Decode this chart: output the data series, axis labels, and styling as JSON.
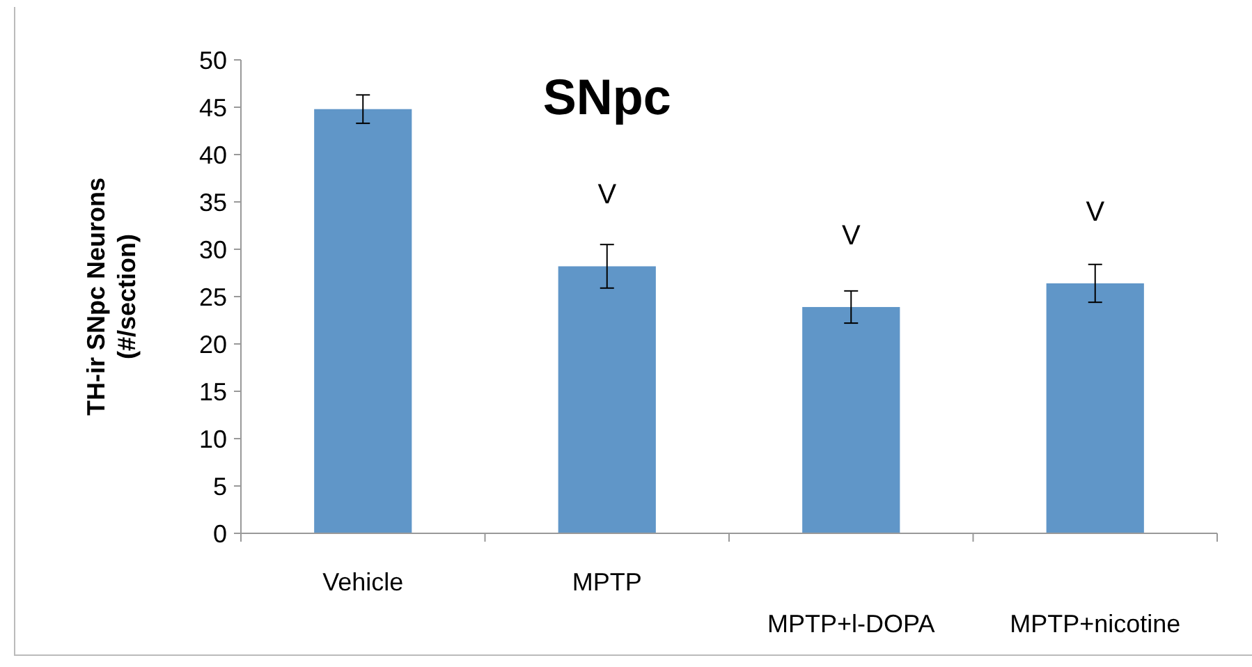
{
  "chart_data": {
    "type": "bar",
    "title": "SNpc",
    "ylabel": "TH-ir SNpc Neurons (#/section)",
    "categories": [
      "Vehicle",
      "MPTP",
      "MPTP+l-DOPA",
      "MPTP+nicotine"
    ],
    "values": [
      44.8,
      28.2,
      23.9,
      26.4
    ],
    "errors": [
      1.5,
      2.3,
      1.7,
      2
    ],
    "color": "#6096c8",
    "ylim": [
      0,
      50
    ],
    "yticks": [
      0,
      5,
      10,
      15,
      20,
      25,
      30,
      35,
      40,
      45,
      50
    ],
    "grid": false,
    "annotations": [
      {
        "text": "V",
        "x": "MPTP",
        "y": 28.2
      },
      {
        "text": "V",
        "x": "MPTP+l-DOPA",
        "y": 23.9
      },
      {
        "text": "V",
        "x": "MPTP+nicotine",
        "y": 26.4
      }
    ]
  }
}
